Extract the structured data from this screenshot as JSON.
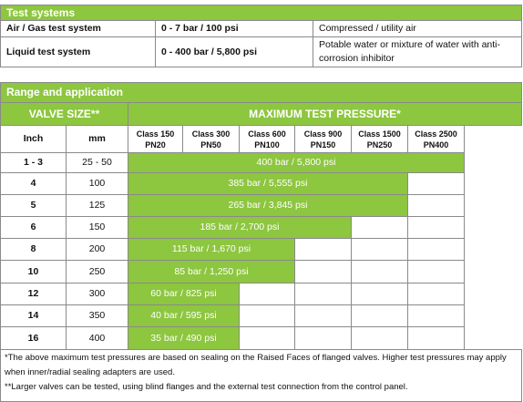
{
  "test_systems": {
    "title": "Test systems",
    "rows": [
      [
        "Air / Gas test system",
        "0 - 7 bar / 100 psi",
        "Compressed / utility air"
      ],
      [
        "Liquid test system",
        "0 - 400 bar / 5,800 psi",
        "Potable water or mixture of water with anti-corrosion inhibitor"
      ]
    ]
  },
  "range": {
    "title": "Range and application",
    "valve_size": "VALVE SIZE**",
    "max_pressure": "MAXIMUM TEST PRESSURE*",
    "columns": [
      "Inch",
      "mm"
    ],
    "classes": [
      [
        "Class 150",
        "PN20"
      ],
      [
        "Class 300",
        "PN50"
      ],
      [
        "Class 600",
        "PN100"
      ],
      [
        "Class 900",
        "PN150"
      ],
      [
        "Class 1500",
        "PN250"
      ],
      [
        "Class 2500",
        "PN400"
      ]
    ],
    "rows": [
      [
        "1 - 3",
        "25 - 50",
        "400 bar / 5,800 psi"
      ],
      [
        "4",
        "100",
        "385 bar / 5,555 psi"
      ],
      [
        "5",
        "125",
        "265 bar / 3,845 psi"
      ],
      [
        "6",
        "150",
        "185 bar / 2,700 psi"
      ],
      [
        "8",
        "200",
        "115 bar / 1,670 psi"
      ],
      [
        "10",
        "250",
        "85 bar / 1,250 psi"
      ],
      [
        "12",
        "300",
        "60 bar / 825 psi"
      ],
      [
        "14",
        "350",
        "40 bar / 595 psi"
      ],
      [
        "16",
        "400",
        "35 bar / 490 psi"
      ]
    ]
  },
  "notes": [
    "*The above maximum test pressures are based on sealing on the Raised Faces of flanged valves. Higher test pressures may apply when inner/radial sealing adapters are used.",
    "**Larger valves can be tested, using blind flanges and the external test connection from the control panel."
  ]
}
